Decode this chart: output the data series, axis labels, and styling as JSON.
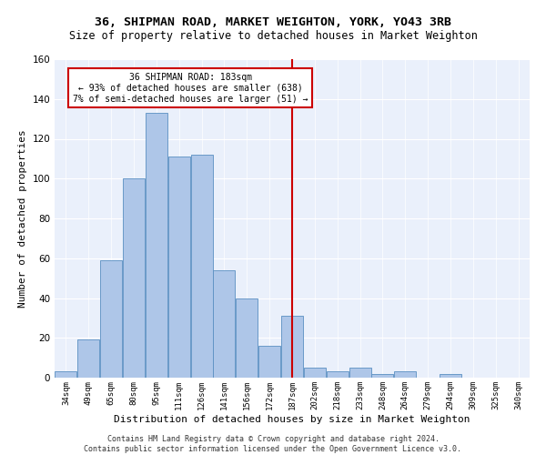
{
  "title": "36, SHIPMAN ROAD, MARKET WEIGHTON, YORK, YO43 3RB",
  "subtitle": "Size of property relative to detached houses in Market Weighton",
  "xlabel": "Distribution of detached houses by size in Market Weighton",
  "ylabel": "Number of detached properties",
  "bar_labels": [
    "34sqm",
    "49sqm",
    "65sqm",
    "80sqm",
    "95sqm",
    "111sqm",
    "126sqm",
    "141sqm",
    "156sqm",
    "172sqm",
    "187sqm",
    "202sqm",
    "218sqm",
    "233sqm",
    "248sqm",
    "264sqm",
    "279sqm",
    "294sqm",
    "309sqm",
    "325sqm",
    "340sqm"
  ],
  "bar_heights": [
    3,
    19,
    59,
    100,
    133,
    111,
    112,
    54,
    40,
    16,
    31,
    5,
    3,
    5,
    2,
    3,
    0,
    2,
    0,
    0,
    0
  ],
  "bar_color": "#aec6e8",
  "bar_edge_color": "#5a8fc2",
  "vline_color": "#cc0000",
  "annotation_text": "36 SHIPMAN ROAD: 183sqm\n← 93% of detached houses are smaller (638)\n7% of semi-detached houses are larger (51) →",
  "annotation_box_color": "#cc0000",
  "ylim": [
    0,
    160
  ],
  "yticks": [
    0,
    20,
    40,
    60,
    80,
    100,
    120,
    140,
    160
  ],
  "background_color": "#eaf0fb",
  "grid_color": "#ffffff",
  "footer_text": "Contains HM Land Registry data © Crown copyright and database right 2024.\nContains public sector information licensed under the Open Government Licence v3.0.",
  "title_fontsize": 9.5,
  "subtitle_fontsize": 8.5,
  "xlabel_fontsize": 8,
  "ylabel_fontsize": 8,
  "footer_fontsize": 6,
  "annotation_fontsize": 7,
  "tick_fontsize": 6.5
}
